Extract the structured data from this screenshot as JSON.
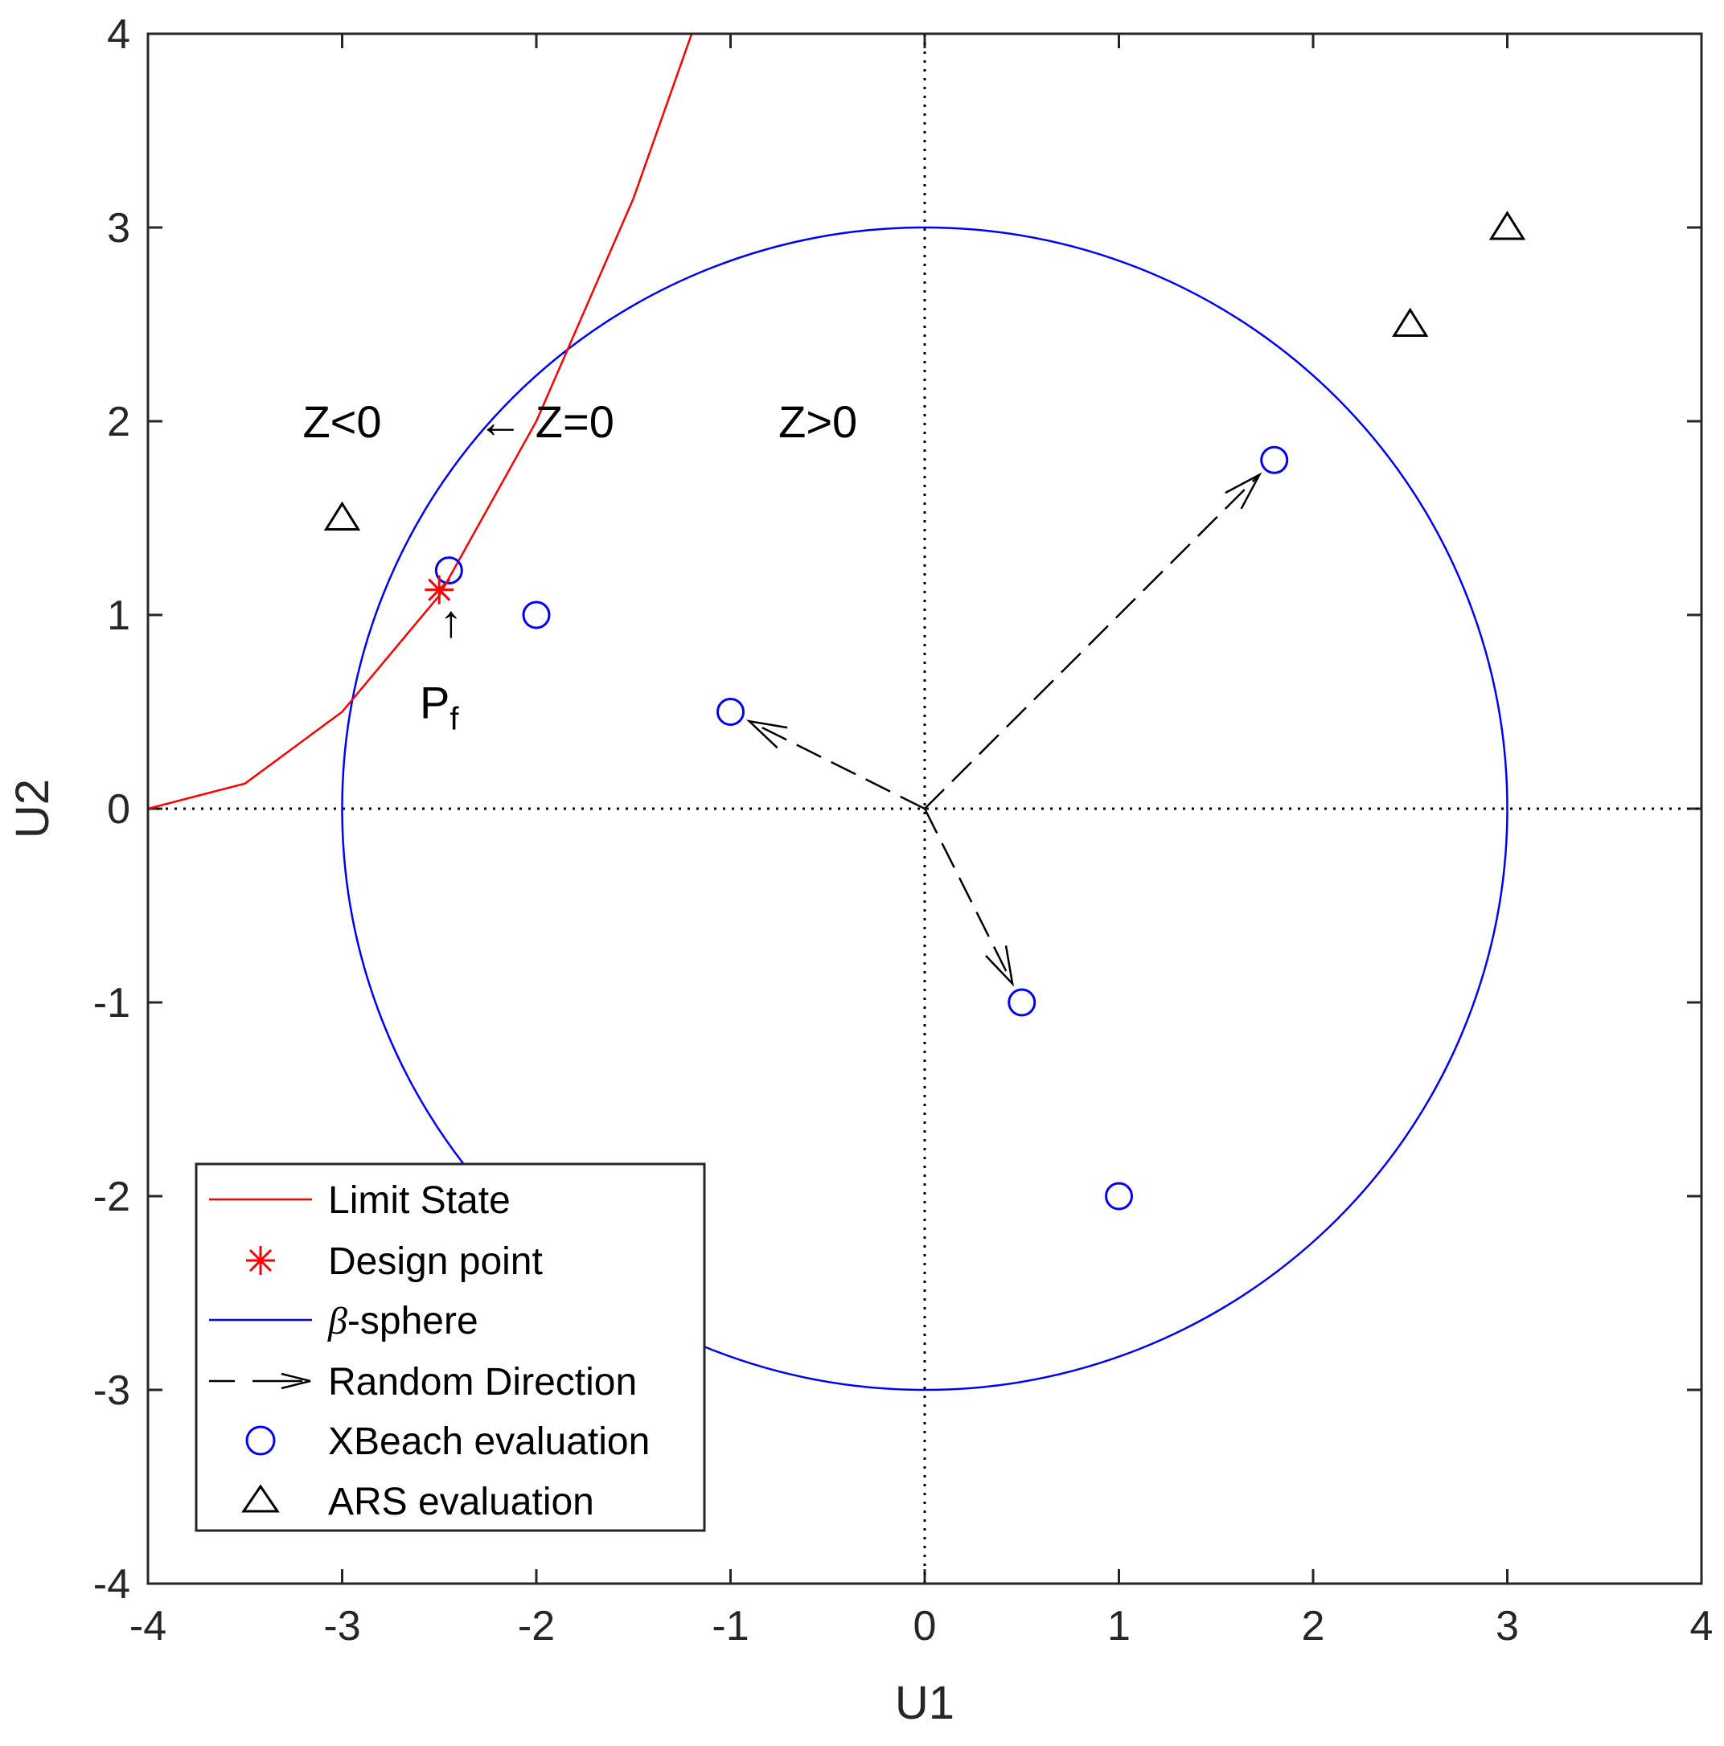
{
  "chart_data": {
    "type": "scatter",
    "xlabel": "U1",
    "ylabel": "U2",
    "xlim": [
      -4,
      4
    ],
    "ylim": [
      -4,
      4
    ],
    "xticks": [
      "-4",
      "-3",
      "-2",
      "-1",
      "0",
      "1",
      "2",
      "3",
      "4"
    ],
    "yticks": [
      "-4",
      "-3",
      "-2",
      "-1",
      "0",
      "1",
      "2",
      "3",
      "4"
    ],
    "grid": false,
    "reference_lines": {
      "x": 0,
      "y": 0,
      "style": "dotted"
    },
    "legend_position": "bottom-left",
    "limit_state": {
      "name": "Limit State",
      "color": "#ff0000",
      "x": [
        -4.0,
        -3.5,
        -3.0,
        -2.5,
        -2.0,
        -1.5,
        -1.2
      ],
      "y": [
        0.0,
        0.13,
        0.5,
        1.1,
        2.0,
        3.15,
        4.0
      ]
    },
    "design_point": {
      "name": "Design point",
      "color": "#ff0000",
      "x": -2.5,
      "y": 1.13
    },
    "beta_sphere": {
      "name": "-sphere",
      "symbol": "β",
      "color": "#0000ff",
      "center": [
        0,
        0
      ],
      "radius": 3
    },
    "random_directions": {
      "name": "Random Direction",
      "color": "#000000",
      "origin": [
        0,
        0
      ],
      "targets": [
        {
          "x": 1.8,
          "y": 1.8
        },
        {
          "x": -1.0,
          "y": 0.5
        },
        {
          "x": 0.5,
          "y": -1.0
        }
      ]
    },
    "xbeach_evaluations": {
      "name": "XBeach evaluation",
      "color": "#0000ff",
      "x": [
        -2.45,
        -2.0,
        -1.0,
        1.8,
        0.5,
        1.0
      ],
      "y": [
        1.23,
        1.0,
        0.5,
        1.8,
        -1.0,
        -2.0
      ]
    },
    "ars_evaluations": {
      "name": "ARS evaluation",
      "color": "#000000",
      "x": [
        -3.0,
        2.5,
        3.0
      ],
      "y": [
        1.5,
        2.5,
        3.0
      ]
    },
    "annotations": [
      {
        "text": "Z<0",
        "x": -3.0,
        "y": 2.0
      },
      {
        "text": "← Z=0",
        "x": -1.95,
        "y": 2.0
      },
      {
        "text": "Z>0",
        "x": -0.55,
        "y": 2.0
      },
      {
        "text": "↑",
        "x": -2.44,
        "y": 0.97
      },
      {
        "text": "P",
        "subscript": "f",
        "x": -2.5,
        "y": 0.55
      }
    ]
  }
}
